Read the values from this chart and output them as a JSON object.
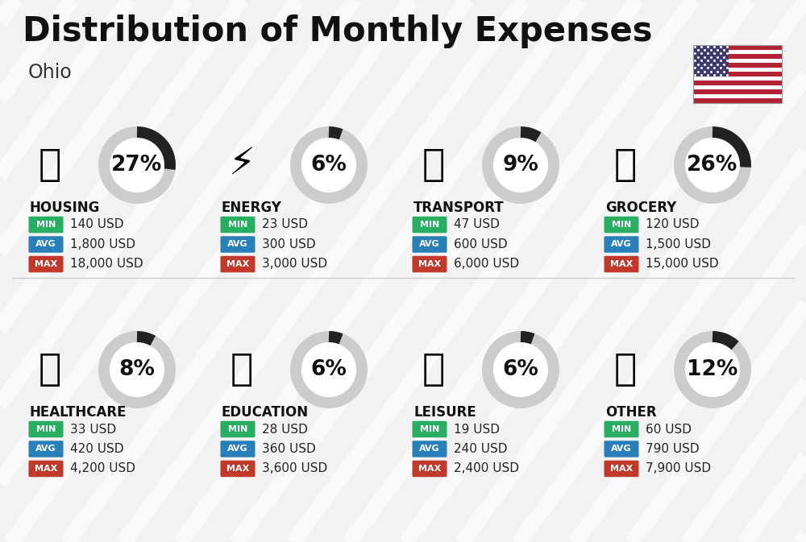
{
  "title": "Distribution of Monthly Expenses",
  "subtitle": "Ohio",
  "bg_color": "#f2f2f2",
  "categories": [
    {
      "name": "HOUSING",
      "pct": 27,
      "icon": "🏗",
      "min_val": "140 USD",
      "avg_val": "1,800 USD",
      "max_val": "18,000 USD",
      "row": 0,
      "col": 0
    },
    {
      "name": "ENERGY",
      "pct": 6,
      "icon": "⚡",
      "min_val": "23 USD",
      "avg_val": "300 USD",
      "max_val": "3,000 USD",
      "row": 0,
      "col": 1
    },
    {
      "name": "TRANSPORT",
      "pct": 9,
      "icon": "🚌",
      "min_val": "47 USD",
      "avg_val": "600 USD",
      "max_val": "6,000 USD",
      "row": 0,
      "col": 2
    },
    {
      "name": "GROCERY",
      "pct": 26,
      "icon": "🛒",
      "min_val": "120 USD",
      "avg_val": "1,500 USD",
      "max_val": "15,000 USD",
      "row": 0,
      "col": 3
    },
    {
      "name": "HEALTHCARE",
      "pct": 8,
      "icon": "🩺",
      "min_val": "33 USD",
      "avg_val": "420 USD",
      "max_val": "4,200 USD",
      "row": 1,
      "col": 0
    },
    {
      "name": "EDUCATION",
      "pct": 6,
      "icon": "🎓",
      "min_val": "28 USD",
      "avg_val": "360 USD",
      "max_val": "3,600 USD",
      "row": 1,
      "col": 1
    },
    {
      "name": "LEISURE",
      "pct": 6,
      "icon": "🛍",
      "min_val": "19 USD",
      "avg_val": "240 USD",
      "max_val": "2,400 USD",
      "row": 1,
      "col": 2
    },
    {
      "name": "OTHER",
      "pct": 12,
      "icon": "💰",
      "min_val": "60 USD",
      "avg_val": "790 USD",
      "max_val": "7,900 USD",
      "row": 1,
      "col": 3
    }
  ],
  "min_color": "#27ae60",
  "avg_color": "#2980b9",
  "max_color": "#c0392b",
  "arc_fg_color": "#222222",
  "arc_bg_color": "#cccccc",
  "title_fontsize": 30,
  "subtitle_fontsize": 17,
  "pct_fontsize": 19,
  "cat_fontsize": 12,
  "val_fontsize": 11,
  "badge_fontsize": 8
}
